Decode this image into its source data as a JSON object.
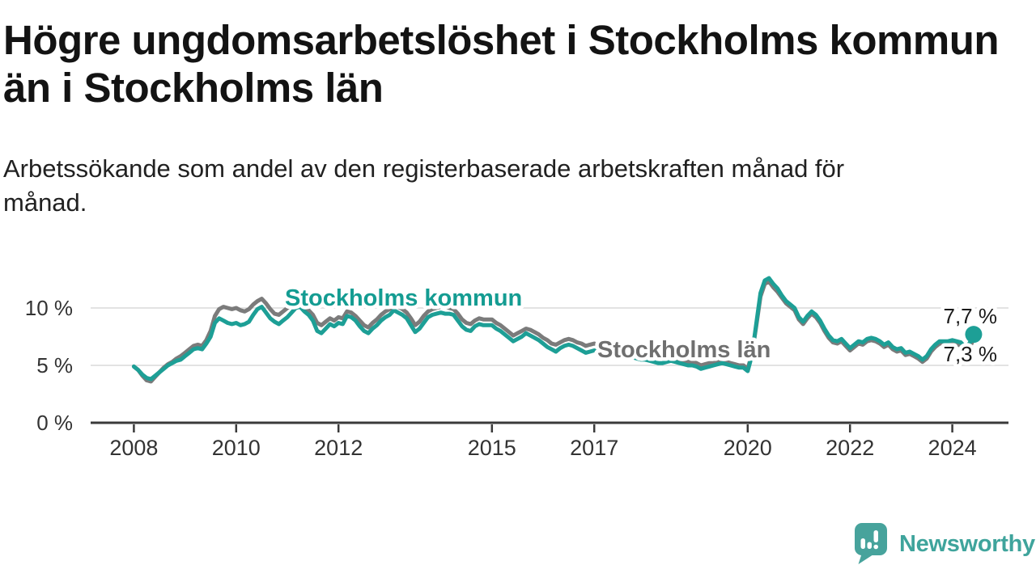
{
  "header": {
    "title_lines": [
      "Högre ungdomsarbetslöshet i Stockholms kommun",
      "än i Stockholms län"
    ],
    "subtitle_lines": [
      "Arbetssökande som andel av den registerbaserade arbetskraften månad för",
      "månad."
    ]
  },
  "chart_data": {
    "type": "line",
    "title": "Högre ungdomsarbetslöshet i Stockholms kommun än i Stockholms län",
    "subtitle": "Arbetssökande som andel av den registerbaserade arbetskraften månad för månad.",
    "unit": "%",
    "x_unit": "month",
    "x_start": "2008-01",
    "x_end": "2024-06",
    "ylim": [
      0,
      13.2
    ],
    "grid": "horizontal",
    "x_ticks": [
      {
        "label": "2008",
        "year": 2008
      },
      {
        "label": "2010",
        "year": 2010
      },
      {
        "label": "2012",
        "year": 2012
      },
      {
        "label": "2015",
        "year": 2015
      },
      {
        "label": "2017",
        "year": 2017
      },
      {
        "label": "2020",
        "year": 2020
      },
      {
        "label": "2022",
        "year": 2022
      },
      {
        "label": "2024",
        "year": 2024
      }
    ],
    "y_ticks": [
      {
        "label": "0 %",
        "value": 0
      },
      {
        "label": "5 %",
        "value": 5
      },
      {
        "label": "10 %",
        "value": 10
      }
    ],
    "series": [
      {
        "name": "Stockholms län",
        "color": "#7b7b7b",
        "label_color": "#6f6f6f",
        "end_label": "7,3 %",
        "end_value": 7.3,
        "values": [
          4.9,
          4.6,
          4.1,
          3.7,
          3.6,
          4.0,
          4.4,
          4.8,
          5.1,
          5.3,
          5.6,
          5.8,
          6.1,
          6.4,
          6.7,
          6.8,
          6.7,
          7.2,
          8.0,
          9.3,
          9.9,
          10.1,
          10.0,
          9.9,
          10.0,
          9.8,
          9.7,
          9.9,
          10.3,
          10.6,
          10.8,
          10.4,
          9.9,
          9.5,
          9.4,
          9.7,
          10.0,
          10.2,
          10.5,
          10.4,
          10.1,
          9.8,
          9.4,
          8.7,
          8.5,
          8.8,
          9.1,
          8.9,
          9.2,
          9.1,
          9.7,
          9.6,
          9.3,
          8.9,
          8.5,
          8.3,
          8.7,
          9.0,
          9.4,
          9.7,
          9.9,
          10.2,
          10.1,
          9.9,
          9.6,
          9.1,
          8.5,
          8.8,
          9.3,
          9.7,
          9.9,
          10.0,
          10.1,
          10.1,
          10.0,
          9.9,
          9.5,
          9.0,
          8.7,
          8.6,
          8.9,
          9.1,
          9.0,
          9.0,
          9.0,
          8.7,
          8.5,
          8.2,
          7.9,
          7.6,
          7.8,
          8.0,
          8.2,
          8.1,
          7.9,
          7.7,
          7.4,
          7.2,
          6.9,
          6.8,
          7.0,
          7.2,
          7.3,
          7.2,
          7.0,
          6.9,
          6.7,
          6.8,
          6.9,
          6.8,
          6.7,
          6.6,
          6.5,
          6.6,
          6.6,
          6.5,
          6.3,
          6.2,
          6.1,
          6.0,
          5.9,
          5.8,
          5.7,
          5.6,
          5.6,
          5.6,
          5.7,
          5.6,
          5.5,
          5.4,
          5.3,
          5.3,
          5.2,
          5.0,
          5.1,
          5.2,
          5.2,
          5.3,
          5.4,
          5.3,
          5.2,
          5.1,
          5.0,
          5.0,
          4.7,
          6.0,
          8.4,
          11.0,
          12.1,
          12.3,
          11.8,
          11.4,
          10.9,
          10.4,
          10.1,
          9.8,
          9.0,
          8.6,
          9.1,
          9.5,
          9.2,
          8.7,
          8.0,
          7.4,
          7.0,
          6.9,
          7.1,
          6.7,
          6.3,
          6.6,
          6.9,
          6.8,
          7.1,
          7.2,
          7.1,
          6.9,
          6.6,
          6.8,
          6.4,
          6.2,
          6.3,
          5.9,
          6.0,
          5.8,
          5.6,
          5.3,
          5.6,
          6.2,
          6.6,
          6.9,
          6.9,
          6.9,
          7.0,
          6.9,
          6.7,
          6.2,
          6.5,
          7.3
        ]
      },
      {
        "name": "Stockholms kommun",
        "color": "#1d9f96",
        "label_color": "#149c92",
        "end_label": "7,7 %",
        "end_value": 7.7,
        "values": [
          4.9,
          4.6,
          4.2,
          3.9,
          3.8,
          4.1,
          4.4,
          4.7,
          5.0,
          5.2,
          5.4,
          5.5,
          5.8,
          6.1,
          6.4,
          6.5,
          6.4,
          6.9,
          7.5,
          8.7,
          9.1,
          8.9,
          8.7,
          8.6,
          8.7,
          8.5,
          8.6,
          8.8,
          9.4,
          9.9,
          10.1,
          9.6,
          9.1,
          8.8,
          8.6,
          8.9,
          9.2,
          9.6,
          10.0,
          10.1,
          9.7,
          9.4,
          8.9,
          8.0,
          7.8,
          8.2,
          8.6,
          8.4,
          8.7,
          8.6,
          9.3,
          9.2,
          8.9,
          8.4,
          8.0,
          7.8,
          8.2,
          8.5,
          8.9,
          9.2,
          9.4,
          9.8,
          9.6,
          9.4,
          9.1,
          8.5,
          7.9,
          8.2,
          8.7,
          9.2,
          9.4,
          9.5,
          9.6,
          9.5,
          9.5,
          9.4,
          8.9,
          8.4,
          8.1,
          8.0,
          8.4,
          8.6,
          8.5,
          8.5,
          8.5,
          8.2,
          8.0,
          7.7,
          7.4,
          7.1,
          7.3,
          7.5,
          7.8,
          7.6,
          7.4,
          7.2,
          6.9,
          6.6,
          6.4,
          6.2,
          6.5,
          6.7,
          6.8,
          6.7,
          6.5,
          6.3,
          6.1,
          6.2,
          6.3,
          6.2,
          6.1,
          6.0,
          5.9,
          6.0,
          6.1,
          6.0,
          5.8,
          5.7,
          5.6,
          5.5,
          5.5,
          5.4,
          5.3,
          5.2,
          5.2,
          5.3,
          5.4,
          5.3,
          5.2,
          5.1,
          5.0,
          5.0,
          4.9,
          4.7,
          4.8,
          4.9,
          5.0,
          5.1,
          5.2,
          5.1,
          5.0,
          4.9,
          4.8,
          4.8,
          4.5,
          5.9,
          8.6,
          11.3,
          12.4,
          12.6,
          12.1,
          11.7,
          11.1,
          10.6,
          10.3,
          10.0,
          9.2,
          8.8,
          9.3,
          9.7,
          9.4,
          8.9,
          8.2,
          7.6,
          7.2,
          7.1,
          7.3,
          6.9,
          6.5,
          6.8,
          7.1,
          7.0,
          7.3,
          7.4,
          7.3,
          7.1,
          6.8,
          7.0,
          6.6,
          6.4,
          6.5,
          6.1,
          6.2,
          6.0,
          5.8,
          5.5,
          5.8,
          6.4,
          6.8,
          7.1,
          7.1,
          7.1,
          7.2,
          7.1,
          7.0,
          6.6,
          6.9,
          7.7
        ]
      }
    ]
  },
  "footer": {
    "brand": "Newsworthy",
    "logo_icon": "bar-chart-speech-bubble"
  },
  "colors": {
    "kommun_teal": "#1d9f96",
    "lan_gray": "#7b7b7b",
    "gridline": "#dadada",
    "axis": "#3a3a3a",
    "logo_teal": "#47a39c"
  }
}
